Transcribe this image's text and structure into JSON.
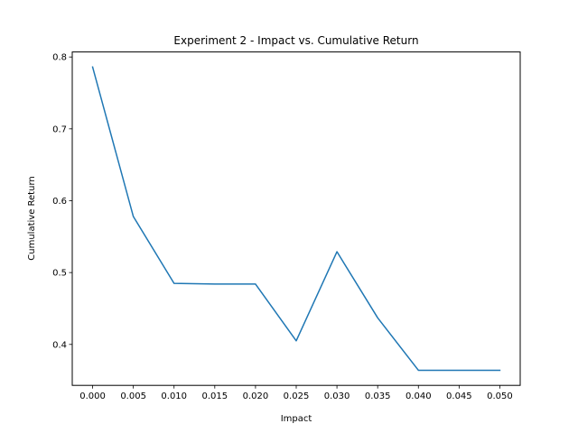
{
  "chart_data": {
    "type": "line",
    "title": "Experiment 2 - Impact vs. Cumulative Return",
    "xlabel": "Impact",
    "ylabel": "Cumulative Return",
    "x": [
      0.0,
      0.005,
      0.01,
      0.015,
      0.02,
      0.025,
      0.03,
      0.035,
      0.04,
      0.045,
      0.05
    ],
    "series": [
      {
        "values": [
          0.786,
          0.578,
          0.485,
          0.484,
          0.484,
          0.405,
          0.529,
          0.437,
          0.364,
          0.364,
          0.364
        ],
        "color": "#1f77b4"
      }
    ],
    "xlim": [
      -0.0025,
      0.0525
    ],
    "ylim": [
      0.343,
      0.807
    ],
    "xticks": [
      0.0,
      0.005,
      0.01,
      0.015,
      0.02,
      0.025,
      0.03,
      0.035,
      0.04,
      0.045,
      0.05
    ],
    "xtick_labels": [
      "0.000",
      "0.005",
      "0.010",
      "0.015",
      "0.020",
      "0.025",
      "0.030",
      "0.035",
      "0.040",
      "0.045",
      "0.050"
    ],
    "yticks": [
      0.4,
      0.5,
      0.6,
      0.7,
      0.8
    ],
    "ytick_labels": [
      "0.4",
      "0.5",
      "0.6",
      "0.7",
      "0.8"
    ],
    "grid": false,
    "legend": "none"
  }
}
